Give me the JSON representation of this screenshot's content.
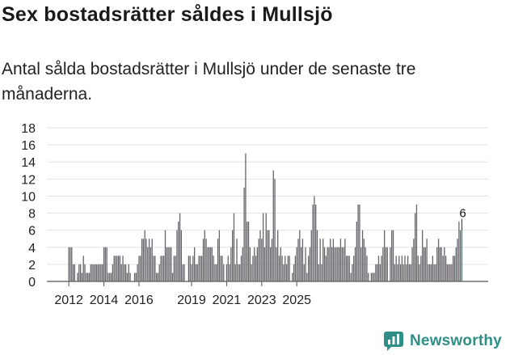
{
  "header": {
    "title": "Sex bostadsrätter såldes i Mullsjö",
    "subtitle": "Antal sålda bostadsrätter i Mullsjö under de senaste tre månaderna."
  },
  "brand": {
    "name": "Newsworthy",
    "icon": "newsworthy-logo-icon",
    "color": "#2f8f86"
  },
  "chart_data": {
    "type": "bar",
    "title": "Sex bostadsrätter såldes i Mullsjö",
    "xlabel": "",
    "ylabel": "",
    "ylim": [
      0,
      18
    ],
    "yticks": [
      0,
      2,
      4,
      6,
      8,
      10,
      12,
      14,
      16,
      18
    ],
    "grid": true,
    "x_tick_labels": [
      "2012",
      "2014",
      "2016",
      "2019",
      "2021",
      "2023",
      "2025"
    ],
    "bar_color": "#66656a",
    "highlight_color": "#2b9a96",
    "highlight_label": "6",
    "start": "2012-01",
    "values": [
      4,
      4,
      4,
      2,
      2,
      0,
      1,
      2,
      2,
      1,
      3,
      2,
      1,
      1,
      1,
      2,
      2,
      2,
      2,
      2,
      2,
      2,
      2,
      2,
      4,
      4,
      4,
      1,
      1,
      1,
      2,
      3,
      3,
      3,
      3,
      3,
      2,
      3,
      2,
      2,
      1,
      2,
      1,
      0,
      0,
      1,
      1,
      2,
      3,
      3,
      5,
      5,
      6,
      5,
      4,
      5,
      4,
      5,
      3,
      3,
      1,
      1,
      2,
      3,
      3,
      3,
      6,
      4,
      4,
      4,
      4,
      1,
      3,
      3,
      6,
      7,
      8,
      6,
      2,
      2,
      0,
      0,
      3,
      3,
      2,
      3,
      4,
      2,
      2,
      3,
      3,
      3,
      5,
      6,
      5,
      4,
      4,
      4,
      4,
      3,
      2,
      2,
      5,
      6,
      3,
      3,
      2,
      0,
      2,
      3,
      2,
      4,
      6,
      8,
      2,
      5,
      2,
      2,
      3,
      4,
      11,
      15,
      7,
      7,
      4,
      2,
      3,
      4,
      3,
      4,
      5,
      6,
      5,
      8,
      4,
      8,
      6,
      6,
      4,
      5,
      13,
      12,
      4,
      6,
      3,
      4,
      3,
      2,
      3,
      2,
      3,
      3,
      0,
      1,
      2,
      3,
      4,
      5,
      6,
      4,
      5,
      2,
      4,
      1,
      3,
      4,
      6,
      9,
      10,
      9,
      6,
      2,
      5,
      2,
      5,
      4,
      3,
      4,
      4,
      5,
      4,
      5,
      4,
      4,
      4,
      4,
      5,
      4,
      4,
      5,
      3,
      3,
      3,
      1,
      2,
      3,
      4,
      7,
      9,
      9,
      4,
      6,
      5,
      4,
      3,
      1,
      0,
      1,
      1,
      1,
      2,
      2,
      3,
      2,
      3,
      4,
      6,
      4,
      4,
      0,
      4,
      6,
      6,
      2,
      3,
      2,
      3,
      2,
      3,
      2,
      3,
      2,
      3,
      2,
      2,
      4,
      5,
      8,
      9,
      3,
      2,
      3,
      6,
      4,
      4,
      5,
      2,
      2,
      2,
      3,
      2,
      2,
      4,
      5,
      4,
      4,
      3,
      4,
      3,
      2,
      2,
      2,
      2,
      3,
      3,
      4,
      5,
      7,
      6,
      6
    ]
  }
}
